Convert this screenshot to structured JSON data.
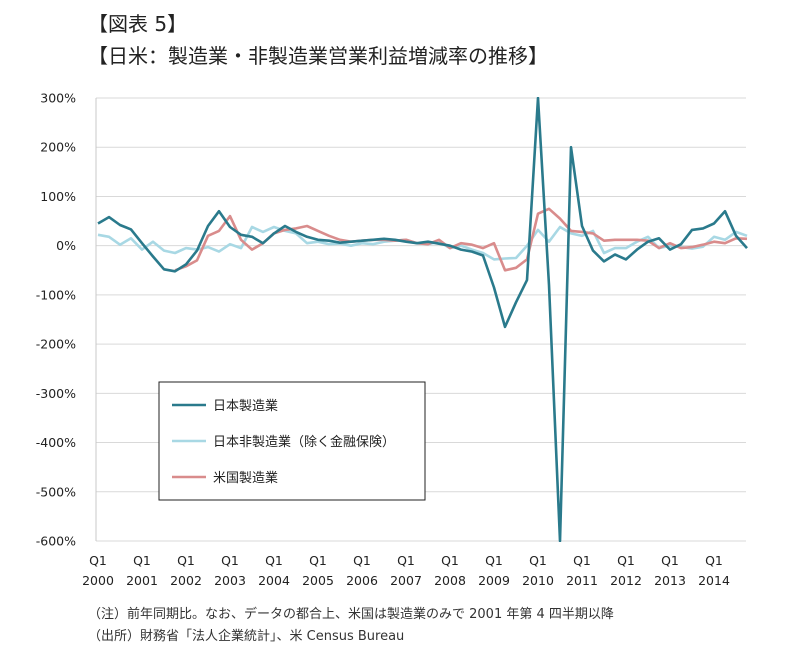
{
  "figure_label": "【図表 5】",
  "title": "【日米：製造業・非製造業営業利益増減率の推移】",
  "footnotes": [
    "（注）前年同期比。なお、データの都合上、米国は製造業のみで 2001 年第 4 四半期以降",
    "（出所）財務省「法人企業統計」、米 Census Bureau"
  ],
  "chart_data": {
    "type": "line",
    "y_ticks": [
      "300%",
      "200%",
      "100%",
      "0%",
      "-100%",
      "-200%",
      "-300%",
      "-400%",
      "-500%",
      "-600%"
    ],
    "ylim": [
      -600,
      300
    ],
    "grid": true,
    "x_ticks": [
      {
        "q": "Q1",
        "year": "2000"
      },
      {
        "q": "Q1",
        "year": "2001"
      },
      {
        "q": "Q1",
        "year": "2002"
      },
      {
        "q": "Q1",
        "year": "2003"
      },
      {
        "q": "Q1",
        "year": "2004"
      },
      {
        "q": "Q1",
        "year": "2005"
      },
      {
        "q": "Q1",
        "year": "2006"
      },
      {
        "q": "Q1",
        "year": "2007"
      },
      {
        "q": "Q1",
        "year": "2008"
      },
      {
        "q": "Q1",
        "year": "2009"
      },
      {
        "q": "Q1",
        "year": "2010"
      },
      {
        "q": "Q1",
        "year": "2011"
      },
      {
        "q": "Q1",
        "year": "2012"
      },
      {
        "q": "Q1",
        "year": "2013"
      },
      {
        "q": "Q1",
        "year": "2014"
      }
    ],
    "x": [
      "2000Q1",
      "2000Q2",
      "2000Q3",
      "2000Q4",
      "2001Q1",
      "2001Q2",
      "2001Q3",
      "2001Q4",
      "2002Q1",
      "2002Q2",
      "2002Q3",
      "2002Q4",
      "2003Q1",
      "2003Q2",
      "2003Q3",
      "2003Q4",
      "2004Q1",
      "2004Q2",
      "2004Q3",
      "2004Q4",
      "2005Q1",
      "2005Q2",
      "2005Q3",
      "2005Q4",
      "2006Q1",
      "2006Q2",
      "2006Q3",
      "2006Q4",
      "2007Q1",
      "2007Q2",
      "2007Q3",
      "2007Q4",
      "2008Q1",
      "2008Q2",
      "2008Q3",
      "2008Q4",
      "2009Q1",
      "2009Q2",
      "2009Q3",
      "2009Q4",
      "2010Q1",
      "2010Q2",
      "2010Q3",
      "2010Q4",
      "2011Q1",
      "2011Q2",
      "2011Q3",
      "2011Q4",
      "2012Q1",
      "2012Q2",
      "2012Q3",
      "2012Q4",
      "2013Q1",
      "2013Q2",
      "2013Q3",
      "2013Q4",
      "2014Q1",
      "2014Q2",
      "2014Q3",
      "2014Q4"
    ],
    "legend_position": "lower-left",
    "series": [
      {
        "name": "日本製造業",
        "color": "#2a7a8c",
        "values": [
          45,
          58,
          42,
          33,
          5,
          -22,
          -48,
          -52,
          -38,
          -10,
          40,
          70,
          38,
          22,
          18,
          5,
          25,
          40,
          28,
          18,
          12,
          10,
          6,
          8,
          10,
          12,
          14,
          12,
          8,
          5,
          8,
          4,
          0,
          -8,
          -12,
          -20,
          -85,
          -165,
          -115,
          -70,
          300,
          -80,
          -600,
          200,
          40,
          -10,
          -32,
          -18,
          -28,
          -8,
          8,
          15,
          -8,
          3,
          32,
          35,
          45,
          70,
          20,
          -5
        ]
      },
      {
        "name": "日本非製造業（除く金融保険）",
        "color": "#a8d8e4",
        "values": [
          22,
          18,
          2,
          15,
          -8,
          8,
          -10,
          -15,
          -5,
          -8,
          -3,
          -12,
          3,
          -5,
          38,
          28,
          38,
          30,
          25,
          5,
          8,
          3,
          4,
          0,
          5,
          3,
          8,
          10,
          12,
          5,
          3,
          8,
          -5,
          0,
          -8,
          -15,
          -28,
          -26,
          -25,
          0,
          32,
          8,
          38,
          25,
          20,
          30,
          -15,
          -5,
          -5,
          8,
          18,
          -5,
          0,
          -3,
          -6,
          -2,
          18,
          12,
          28,
          20
        ]
      },
      {
        "name": "米国製造業",
        "color": "#d98c8c",
        "values": [
          null,
          null,
          null,
          null,
          null,
          null,
          null,
          -50,
          -42,
          -30,
          20,
          30,
          60,
          12,
          -8,
          5,
          25,
          32,
          35,
          40,
          30,
          20,
          12,
          8,
          10,
          12,
          12,
          10,
          12,
          5,
          3,
          12,
          -5,
          5,
          2,
          -5,
          5,
          -50,
          -45,
          -28,
          65,
          75,
          55,
          30,
          28,
          25,
          10,
          12,
          12,
          12,
          10,
          -5,
          5,
          -5,
          -3,
          2,
          8,
          5,
          15,
          14
        ]
      }
    ]
  }
}
